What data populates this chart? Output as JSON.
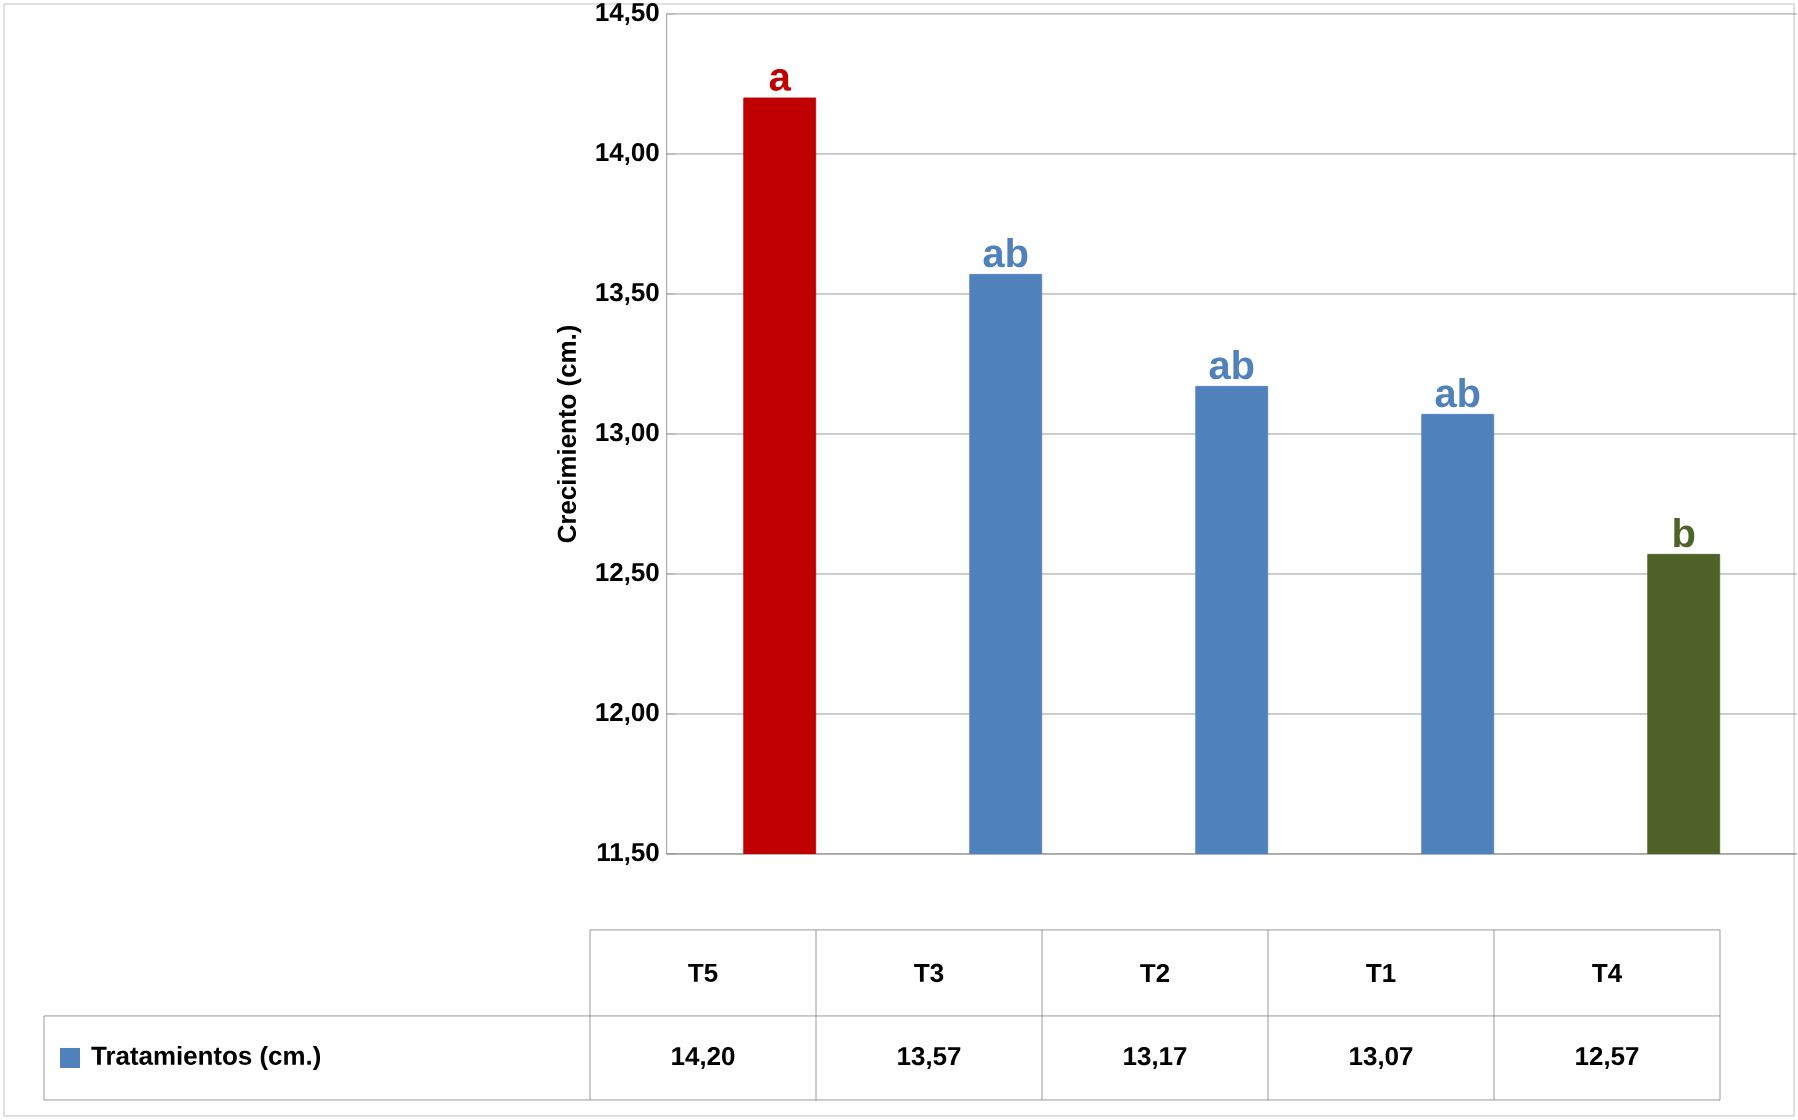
{
  "chart_data": {
    "type": "bar",
    "ylabel": "Crecimiento (cm.)",
    "categories": [
      "T5",
      "T3",
      "T2",
      "T1",
      "T4"
    ],
    "series": [
      {
        "name": "Tratamientos (cm.)",
        "color": "#4f81bd",
        "colors": [
          "#c00000",
          "#4f81bd",
          "#4f81bd",
          "#4f81bd",
          "#4f6228"
        ],
        "values": [
          14.2,
          13.57,
          13.17,
          13.07,
          12.57
        ],
        "value_labels": [
          "14,20",
          "13,57",
          "13,17",
          "13,07",
          "12,57"
        ]
      }
    ],
    "ylim": [
      11.5,
      14.5
    ],
    "yticks": [
      {
        "value": 11.5,
        "label": "11,50"
      },
      {
        "value": 12.0,
        "label": "12,00"
      },
      {
        "value": 12.5,
        "label": "12,50"
      },
      {
        "value": 13.0,
        "label": "13,00"
      },
      {
        "value": 13.5,
        "label": "13,50"
      },
      {
        "value": 14.0,
        "label": "14,00"
      },
      {
        "value": 14.5,
        "label": "14,50"
      }
    ],
    "grid": "y",
    "legend": "bottom",
    "annotations": [
      "a",
      "ab",
      "ab",
      "ab",
      "b"
    ]
  }
}
